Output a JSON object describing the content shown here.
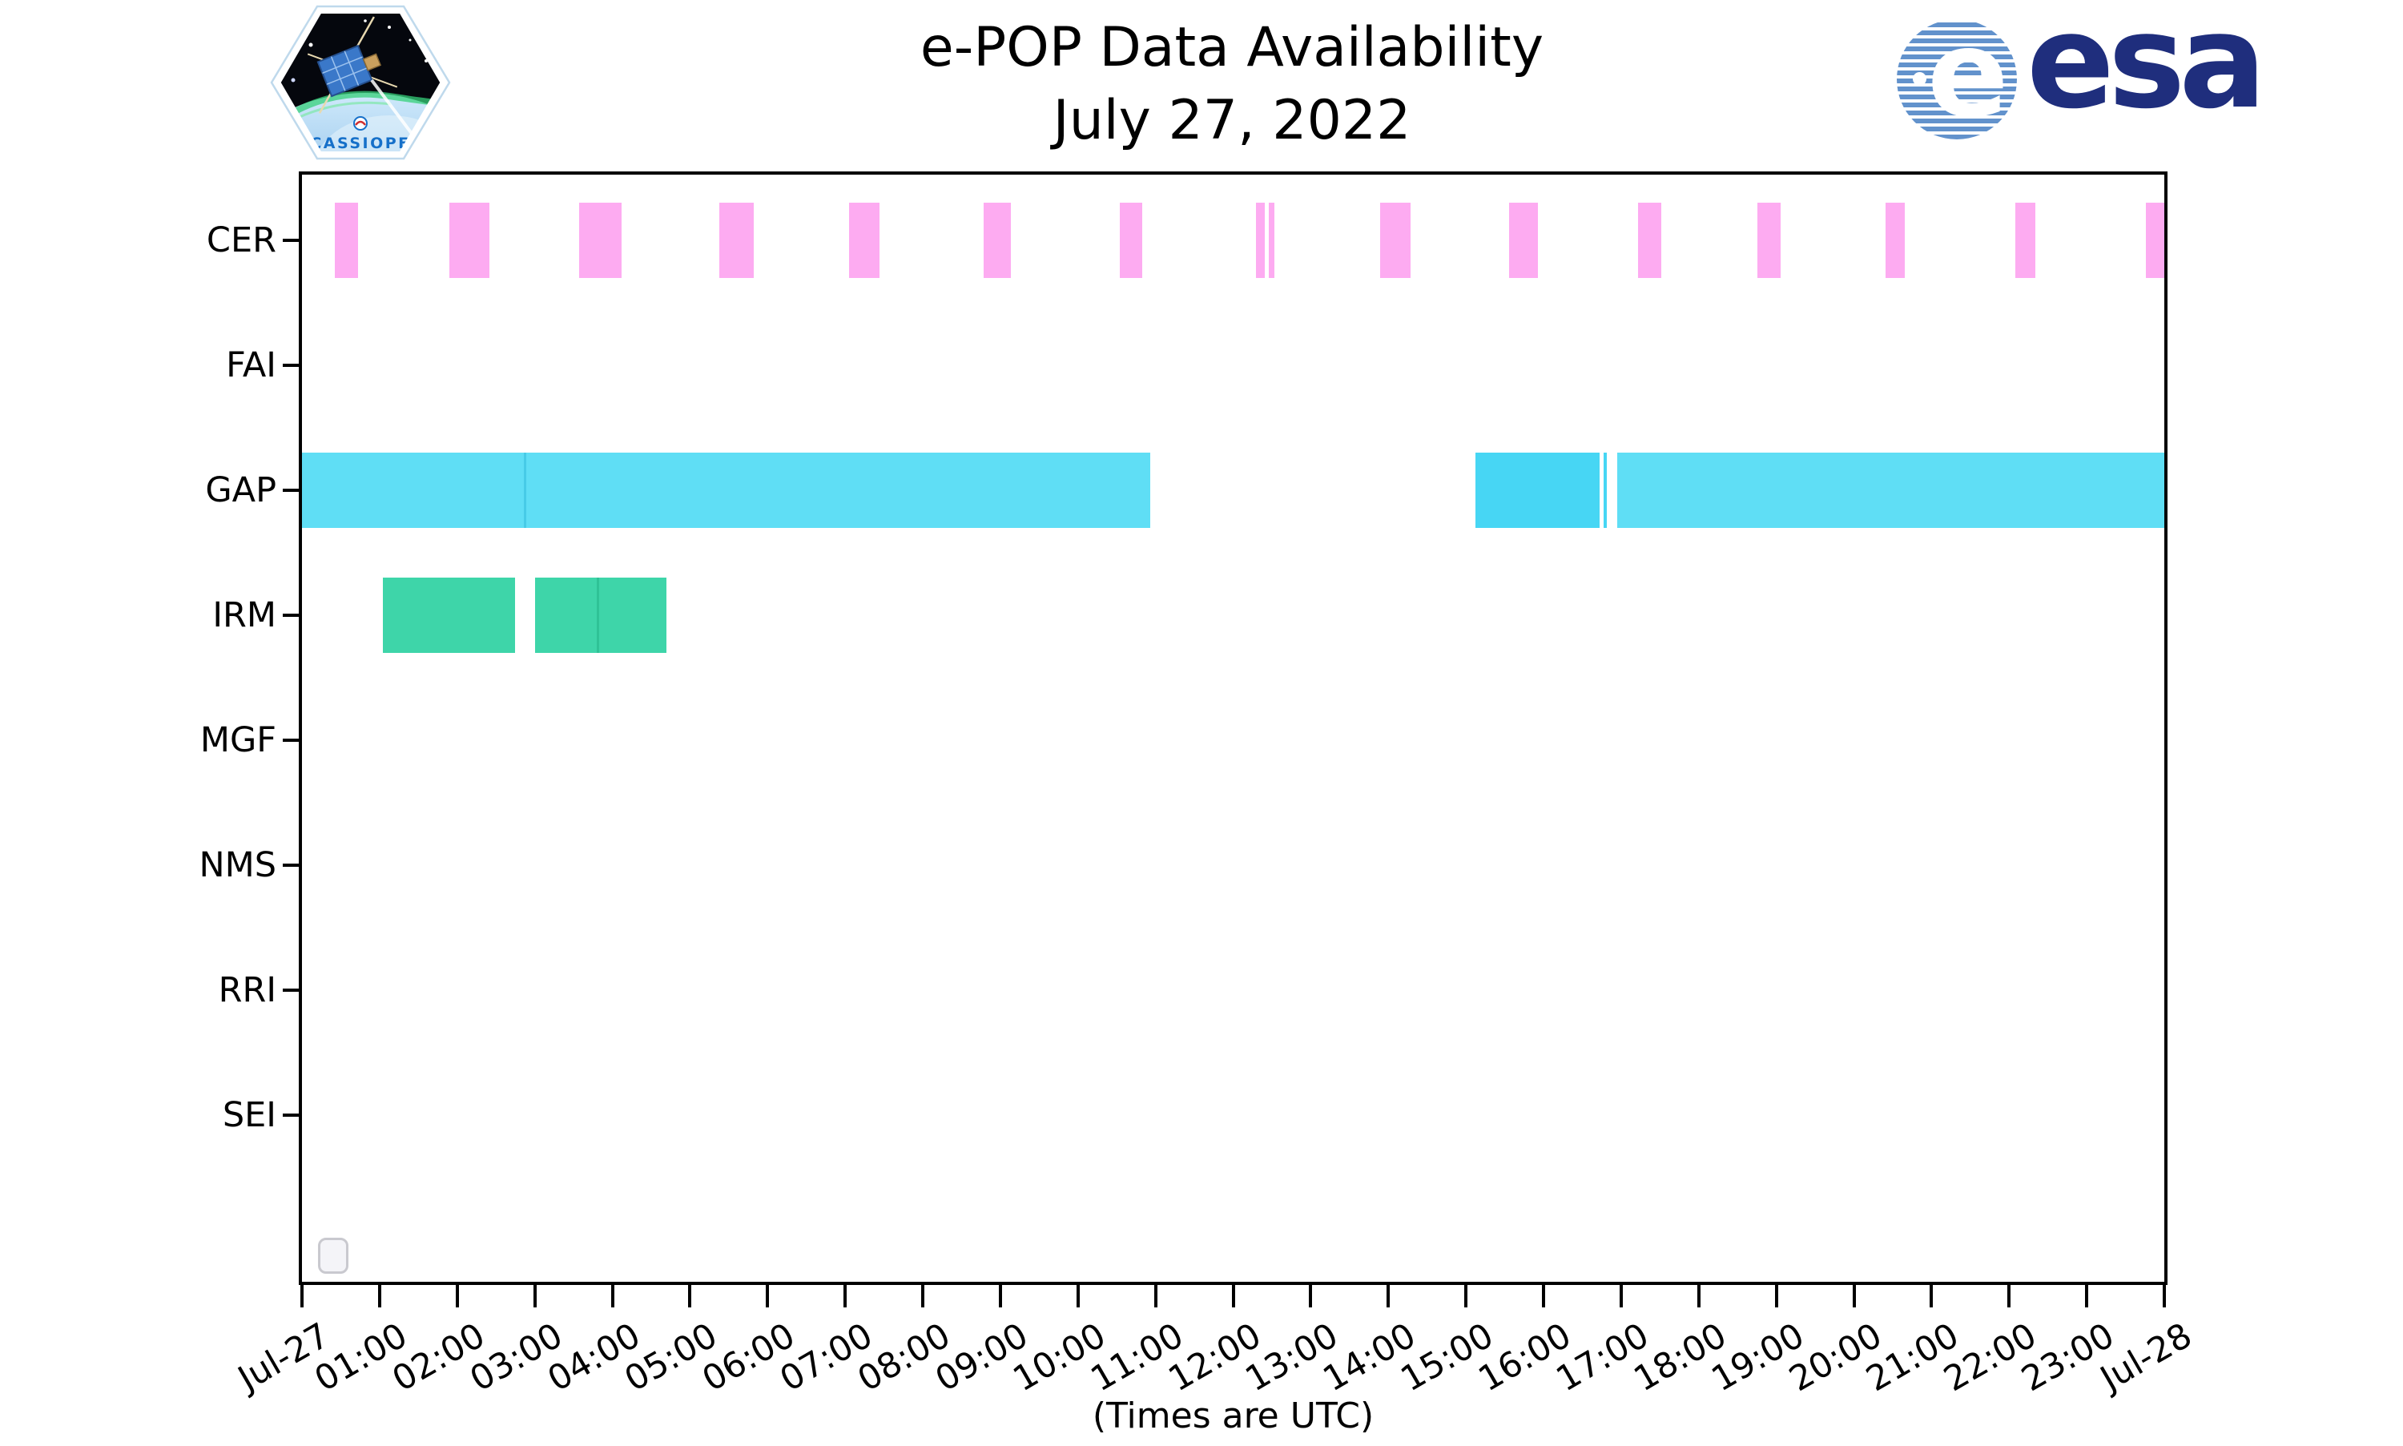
{
  "header": {
    "title_line1": "e-POP Data Availability",
    "title_line2": "July 27, 2022",
    "patch_text": "CASSIOPE",
    "esa_text": "esa",
    "esa_e": "e"
  },
  "chart_data": {
    "type": "gantt",
    "title": "e-POP Data Availability",
    "subtitle": "July 27, 2022",
    "xlabel": "(Times are UTC)",
    "grid": false,
    "legend": "none",
    "x_axis": {
      "units": "hours UTC",
      "range_hours": [
        0,
        24
      ],
      "tick_labels": [
        "Jul-27",
        "01:00",
        "02:00",
        "03:00",
        "04:00",
        "05:00",
        "06:00",
        "07:00",
        "08:00",
        "09:00",
        "10:00",
        "11:00",
        "12:00",
        "13:00",
        "14:00",
        "15:00",
        "16:00",
        "17:00",
        "18:00",
        "19:00",
        "20:00",
        "21:00",
        "22:00",
        "23:00",
        "Jul-28"
      ]
    },
    "y_categories": [
      "CER",
      "FAI",
      "GAP",
      "IRM",
      "MGF",
      "NMS",
      "RRI",
      "SEI"
    ],
    "colors": {
      "cer_pink": "#fdabf1",
      "gap_cyan_light": "#5fdef5",
      "gap_cyan_dark": "#47d6f4",
      "irm_green": "#3ed5a9",
      "axis_black": "#000000"
    },
    "bars": [
      {
        "row": "CER",
        "start": 0.42,
        "end": 0.72,
        "color": "#fdabf1"
      },
      {
        "row": "CER",
        "start": 1.9,
        "end": 2.42,
        "color": "#fdabf1"
      },
      {
        "row": "CER",
        "start": 3.57,
        "end": 4.12,
        "color": "#fdabf1"
      },
      {
        "row": "CER",
        "start": 5.38,
        "end": 5.82,
        "color": "#fdabf1"
      },
      {
        "row": "CER",
        "start": 7.05,
        "end": 7.44,
        "color": "#fdabf1"
      },
      {
        "row": "CER",
        "start": 8.78,
        "end": 9.14,
        "color": "#fdabf1"
      },
      {
        "row": "CER",
        "start": 10.54,
        "end": 10.83,
        "color": "#fdabf1"
      },
      {
        "row": "CER",
        "start": 12.29,
        "end": 12.41,
        "color": "#fdabf1"
      },
      {
        "row": "CER",
        "start": 12.46,
        "end": 12.53,
        "color": "#fdabf1"
      },
      {
        "row": "CER",
        "start": 13.89,
        "end": 14.29,
        "color": "#fdabf1"
      },
      {
        "row": "CER",
        "start": 15.56,
        "end": 15.93,
        "color": "#fdabf1"
      },
      {
        "row": "CER",
        "start": 17.22,
        "end": 17.52,
        "color": "#fdabf1"
      },
      {
        "row": "CER",
        "start": 18.76,
        "end": 19.06,
        "color": "#fdabf1"
      },
      {
        "row": "CER",
        "start": 20.41,
        "end": 20.66,
        "color": "#fdabf1"
      },
      {
        "row": "CER",
        "start": 22.08,
        "end": 22.34,
        "color": "#fdabf1"
      },
      {
        "row": "CER",
        "start": 23.76,
        "end": 24.0,
        "color": "#fdabf1"
      },
      {
        "row": "GAP",
        "start": 0.0,
        "end": 10.93,
        "color": "#5fdef5"
      },
      {
        "row": "GAP",
        "start": 15.12,
        "end": 16.72,
        "color": "#47d6f4"
      },
      {
        "row": "GAP",
        "start": 16.77,
        "end": 16.82,
        "color": "#47d6f4"
      },
      {
        "row": "GAP",
        "start": 16.95,
        "end": 24.0,
        "color": "#5fdef5"
      },
      {
        "row": "IRM",
        "start": 1.04,
        "end": 2.75,
        "color": "#3ed5a9"
      },
      {
        "row": "IRM",
        "start": 3.0,
        "end": 4.7,
        "color": "#3ed5a9"
      }
    ],
    "seams": [
      {
        "row": "GAP",
        "t": 2.87,
        "color": "rgba(30,170,205,0.35)"
      },
      {
        "row": "IRM",
        "t": 3.81,
        "color": "rgba(20,160,115,0.35)"
      }
    ]
  }
}
